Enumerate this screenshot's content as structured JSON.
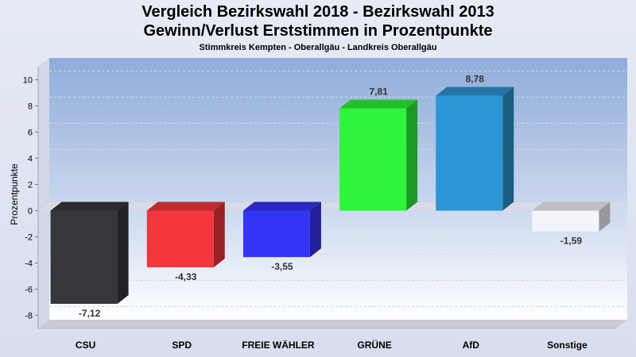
{
  "header": {
    "title_line1": "Vergleich Bezirkswahl 2018 - Bezirkswahl 2013",
    "title_line2": "Gewinn/Verlust Erststimmen in Prozentpunkte",
    "subtitle": "Stimmkreis Kempten - Oberallgäu - Landkreis Oberallgäu"
  },
  "chart_data": {
    "type": "bar",
    "title": "Vergleich Bezirkswahl 2018 - Bezirkswahl 2013 Gewinn/Verlust Erststimmen in Prozentpunkte",
    "subtitle": "Stimmkreis Kempten - Oberallgäu - Landkreis Oberallgäu",
    "xlabel": "",
    "ylabel": "Prozentpunkte",
    "ylim": [
      -9,
      11
    ],
    "yticks": [
      10,
      8,
      6,
      4,
      2,
      0,
      -2,
      -4,
      -6,
      -8
    ],
    "grid": true,
    "categories": [
      "CSU",
      "SPD",
      "FREIE WÄHLER",
      "GRÜNE",
      "AfD",
      "Sonstige"
    ],
    "values": [
      -7.12,
      -4.33,
      -3.55,
      7.81,
      8.78,
      -1.59
    ],
    "value_labels": [
      "-7,12",
      "-4,33",
      "-3,55",
      "7,81",
      "8,78",
      "-1,59"
    ],
    "colors": [
      "#36373b",
      "#f5363c",
      "#3535f5",
      "#2ef53b",
      "#2b96d3",
      "#f3f5fa"
    ]
  }
}
